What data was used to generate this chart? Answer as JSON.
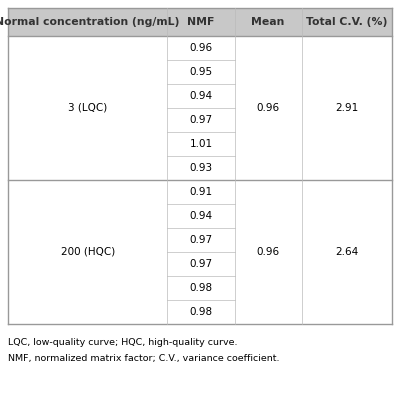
{
  "header": [
    "Normal concentration (ng/mL)",
    "NMF",
    "Mean",
    "Total C.V. (%)"
  ],
  "header_bg": "#c8c8c8",
  "header_text_color": "#333333",
  "border_color_outer": "#999999",
  "border_color_inner": "#bbbbbb",
  "group1_label": "3 (LQC)",
  "group1_nmf": [
    "0.96",
    "0.95",
    "0.94",
    "0.97",
    "1.01",
    "0.93"
  ],
  "group1_mean": "0.96",
  "group1_cv": "2.91",
  "group2_label": "200 (HQC)",
  "group2_nmf": [
    "0.91",
    "0.94",
    "0.97",
    "0.97",
    "0.98",
    "0.98"
  ],
  "group2_mean": "0.96",
  "group2_cv": "2.64",
  "footnote1": "LQC, low-quality curve; HQC, high-quality curve.",
  "footnote2": "NMF, normalized matrix factor; C.V., variance coefficient.",
  "font_size": 7.5,
  "header_font_size": 7.8,
  "footnote_font_size": 6.8,
  "background": "#ffffff"
}
